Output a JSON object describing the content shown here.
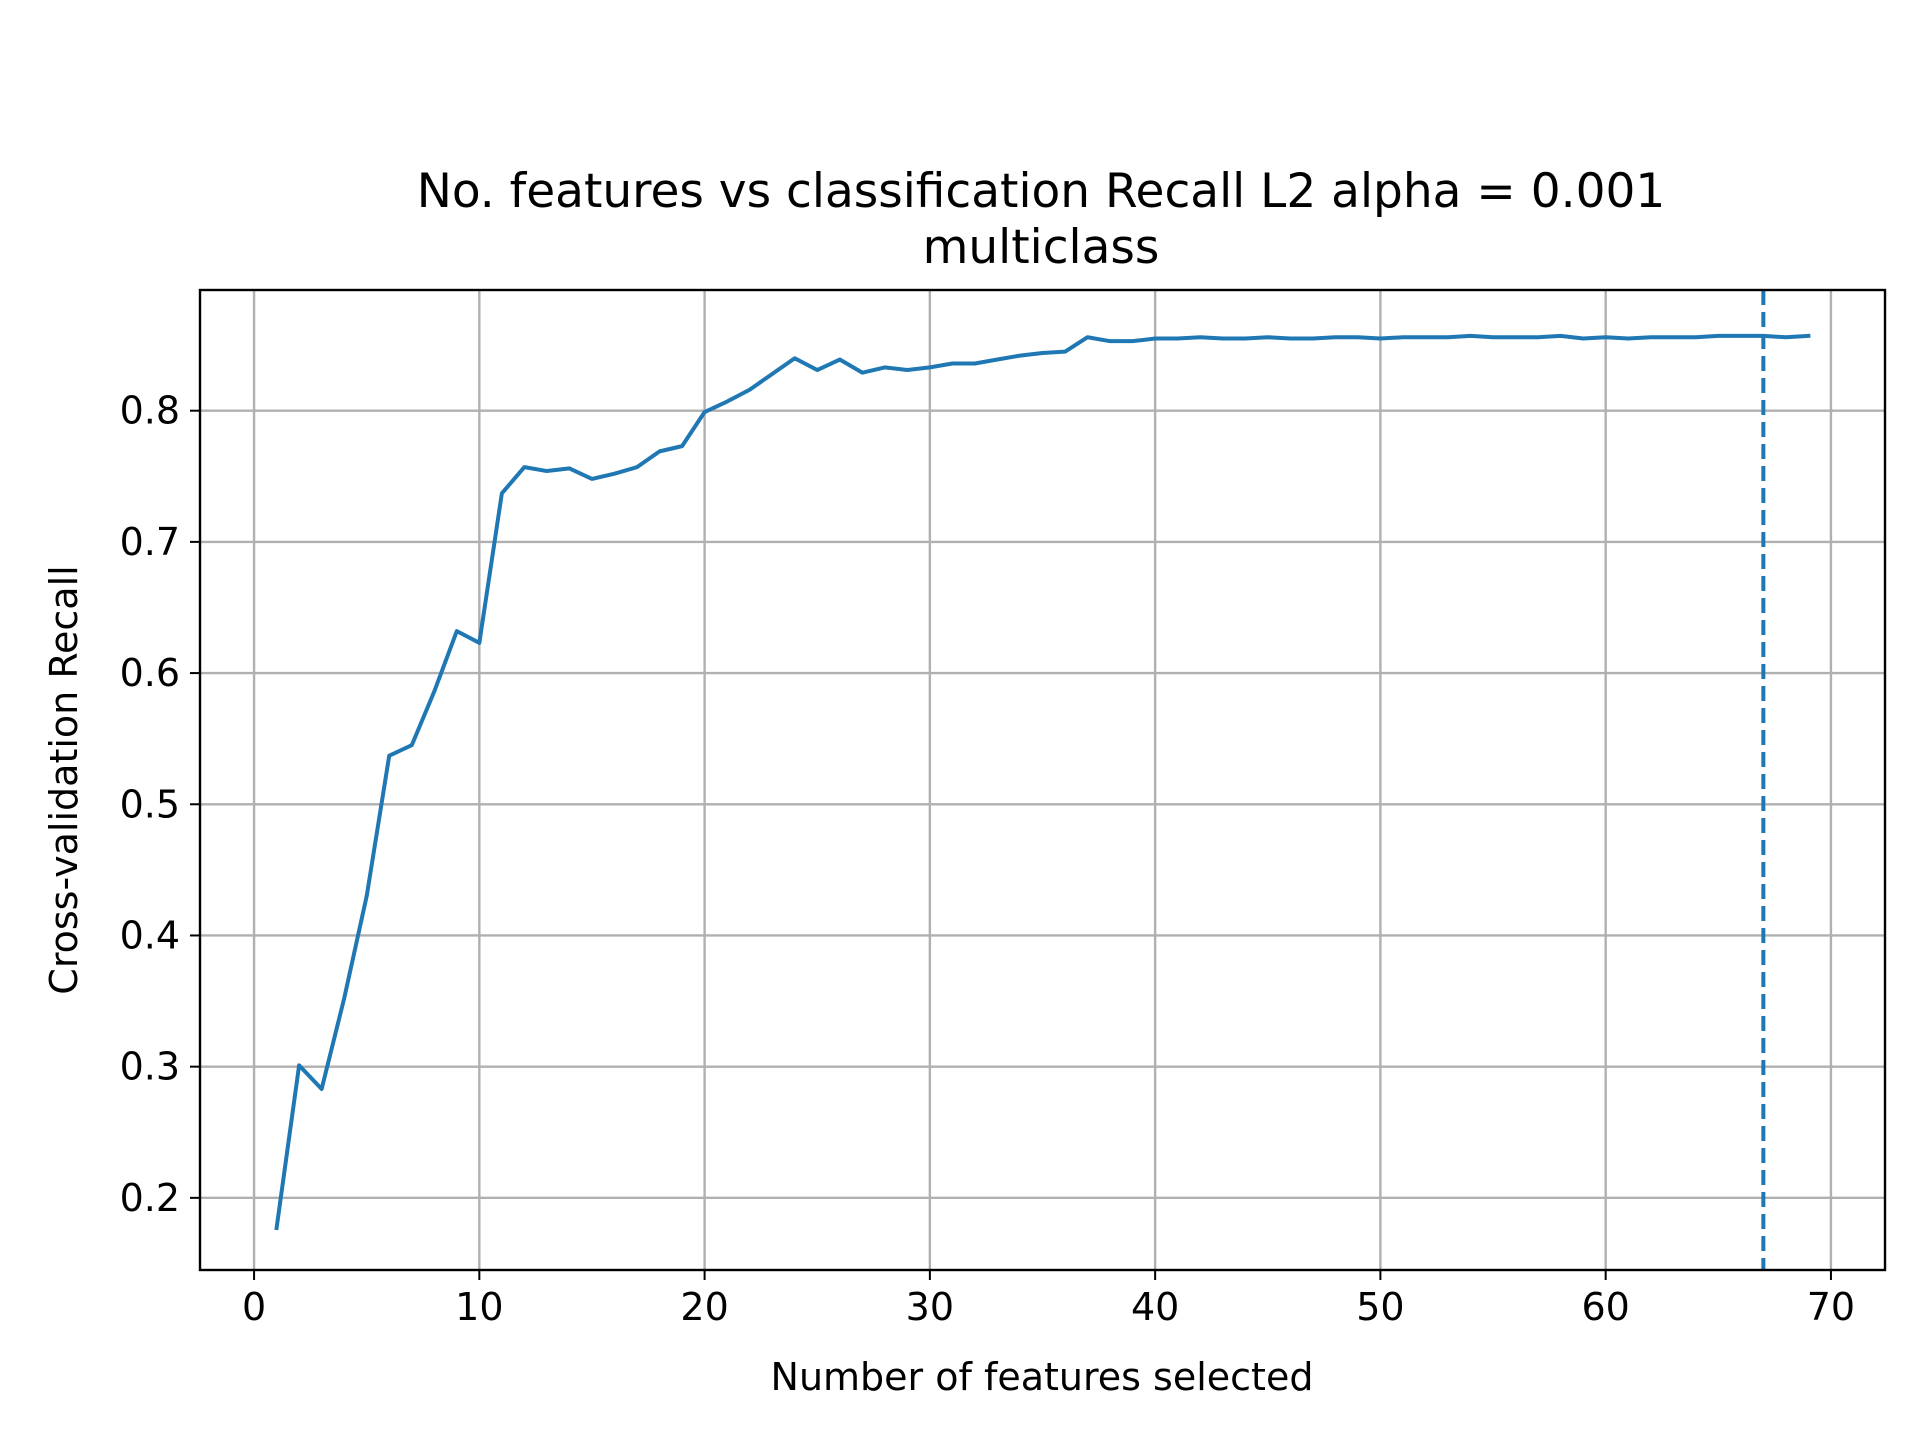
{
  "chart_data": {
    "type": "line",
    "title": "No. features vs classification Recall L2 alpha = 0.001",
    "subtitle": "multiclass",
    "xlabel": "Number of features selected",
    "ylabel": "Cross-validation Recall",
    "xlim": [
      -2.4,
      72.4
    ],
    "ylim": [
      0.145,
      0.892
    ],
    "xticks": [
      0,
      10,
      20,
      30,
      40,
      50,
      60,
      70
    ],
    "xtick_labels": [
      "0",
      "10",
      "20",
      "30",
      "40",
      "50",
      "60",
      "70"
    ],
    "yticks": [
      0.2,
      0.3,
      0.4,
      0.5,
      0.6,
      0.7,
      0.8
    ],
    "ytick_labels": [
      "0.2",
      "0.3",
      "0.4",
      "0.5",
      "0.6",
      "0.7",
      "0.8"
    ],
    "grid": true,
    "line_color": "#1f77b4",
    "vline": {
      "x": 67,
      "style": "dashed",
      "color": "#1f77b4"
    },
    "series": [
      {
        "x": [
          1,
          2,
          3,
          4,
          5,
          6,
          7,
          8,
          9,
          10,
          11,
          12,
          13,
          14,
          15,
          16,
          17,
          18,
          19,
          20,
          21,
          22,
          23,
          24,
          25,
          26,
          27,
          28,
          29,
          30,
          31,
          32,
          33,
          34,
          35,
          36,
          37,
          38,
          39,
          40,
          41,
          42,
          43,
          44,
          45,
          46,
          47,
          48,
          49,
          50,
          51,
          52,
          53,
          54,
          55,
          56,
          57,
          58,
          59,
          60,
          61,
          62,
          63,
          64,
          65,
          66,
          67,
          68,
          69
        ],
        "values": [
          0.177,
          0.301,
          0.283,
          0.352,
          0.43,
          0.537,
          0.545,
          0.586,
          0.632,
          0.623,
          0.737,
          0.757,
          0.754,
          0.756,
          0.748,
          0.752,
          0.757,
          0.769,
          0.773,
          0.799,
          0.807,
          0.816,
          0.828,
          0.84,
          0.831,
          0.839,
          0.829,
          0.833,
          0.831,
          0.833,
          0.836,
          0.836,
          0.839,
          0.842,
          0.844,
          0.845,
          0.856,
          0.853,
          0.853,
          0.855,
          0.855,
          0.856,
          0.855,
          0.855,
          0.856,
          0.855,
          0.855,
          0.856,
          0.856,
          0.855,
          0.856,
          0.856,
          0.856,
          0.857,
          0.856,
          0.856,
          0.856,
          0.857,
          0.855,
          0.856,
          0.855,
          0.856,
          0.856,
          0.856,
          0.857,
          0.857,
          0.857,
          0.856,
          0.857
        ]
      }
    ]
  }
}
